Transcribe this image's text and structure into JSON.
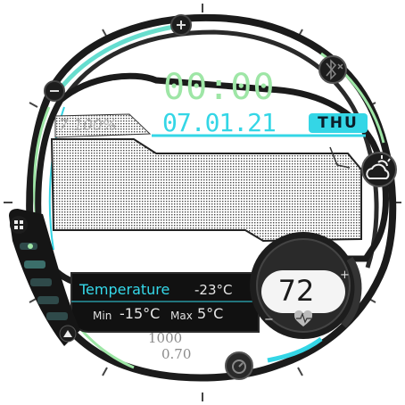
{
  "watchface": {
    "time": "00:00",
    "date": "07.01.21",
    "day_of_week": "THU",
    "battery_percent_label": "7 100%",
    "weather": {
      "label": "Temperature",
      "current": "-23°C",
      "min_label": "Min",
      "min": "-15°C",
      "max_label": "Max",
      "max": "5°C",
      "icon": "partly-cloudy-icon"
    },
    "steps": "1000",
    "distance": "0.70",
    "heart_rate": {
      "value": "72",
      "plus": "+",
      "minus": "−",
      "icon": "heart-icon"
    },
    "icons": {
      "top": "plus-icon",
      "left": "minus-icon",
      "bluetooth": "bluetooth-off-icon",
      "menu": "grid-icon",
      "up": "up-arrow-icon",
      "bottom": "timer-icon"
    },
    "colors": {
      "accent_cyan": "#34d6e6",
      "accent_green": "#9ee6a6",
      "frame": "#1b1b1b"
    }
  }
}
